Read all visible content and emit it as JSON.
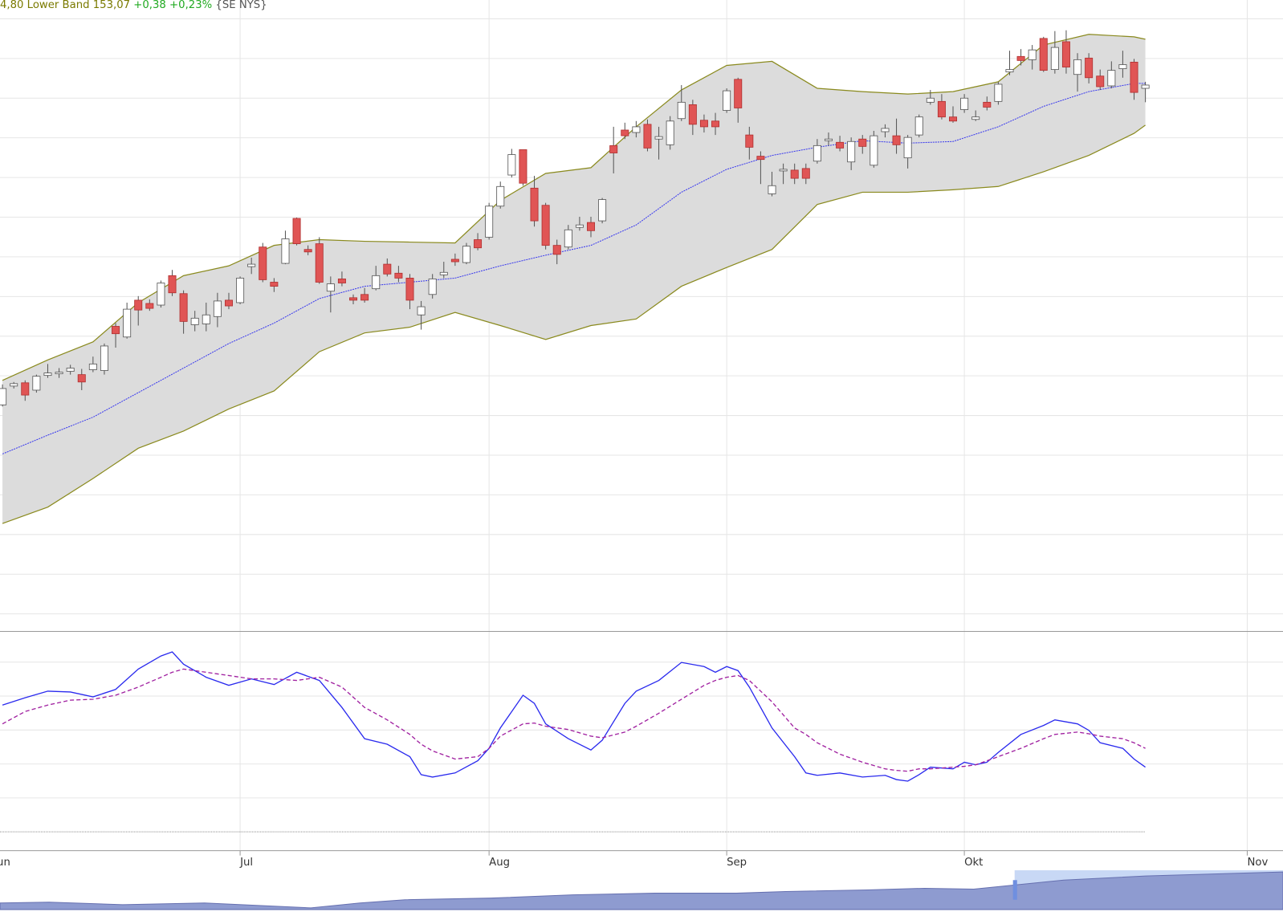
{
  "header": {
    "band": "4,80 Lower Band 153,07",
    "change": "+0,38",
    "change_pct": "+0,23%",
    "exchange": "{SE NYS}"
  },
  "chart_data": [
    {
      "type": "candlestick",
      "x": [
        0,
        1,
        2,
        3,
        4,
        5,
        6,
        7,
        8,
        9,
        10,
        11,
        12,
        13,
        14,
        15,
        16,
        17,
        18,
        19,
        20,
        21,
        22,
        23,
        24,
        25,
        26,
        27,
        28,
        29,
        30,
        31,
        32,
        33,
        34,
        35,
        36,
        37,
        38,
        39,
        40,
        41,
        42,
        43,
        44,
        45,
        46,
        47,
        48,
        49,
        50,
        51,
        52,
        53,
        54,
        55,
        56,
        57,
        58,
        59,
        60,
        61,
        62,
        63,
        64,
        65,
        66,
        67,
        68,
        69,
        70,
        71,
        72,
        73,
        74,
        75,
        76,
        77,
        78,
        79,
        80,
        81,
        82,
        83,
        84,
        85,
        86,
        87,
        88,
        89,
        90,
        91,
        92,
        93,
        94,
        95,
        96,
        97,
        98,
        99,
        100,
        101
      ],
      "open": [
        139.4,
        140.32,
        140.48,
        140.12,
        140.84,
        140.92,
        141.04,
        140.88,
        141.12,
        141.08,
        143.24,
        142.72,
        144.52,
        144.36,
        144.28,
        145.72,
        144.84,
        143.32,
        143.36,
        143.72,
        144.52,
        144.4,
        146.16,
        147.12,
        145.4,
        146.32,
        148.52,
        147.0,
        147.28,
        144.96,
        145.56,
        144.64,
        144.8,
        145.08,
        146.28,
        145.84,
        145.6,
        143.8,
        144.8,
        145.76,
        146.52,
        146.36,
        147.48,
        147.6,
        149.12,
        150.64,
        151.88,
        150.0,
        149.16,
        147.2,
        147.12,
        148.08,
        148.32,
        148.4,
        152.08,
        152.84,
        152.72,
        153.12,
        152.4,
        152.12,
        153.4,
        154.08,
        153.32,
        153.28,
        153.8,
        155.32,
        152.6,
        151.56,
        149.72,
        150.84,
        150.88,
        150.96,
        151.32,
        152.32,
        152.24,
        151.28,
        152.4,
        151.12,
        152.76,
        152.56,
        151.48,
        152.6,
        154.2,
        154.24,
        153.48,
        153.84,
        153.36,
        154.2,
        154.24,
        155.68,
        156.44,
        156.28,
        157.32,
        155.8,
        157.16,
        155.56,
        156.36,
        155.48,
        155.0,
        155.84,
        156.16,
        154.88
      ],
      "high": [
        140.4,
        140.52,
        140.6,
        140.88,
        141.4,
        141.2,
        141.36,
        141.16,
        141.76,
        142.4,
        143.4,
        144.4,
        144.72,
        144.56,
        145.48,
        146.0,
        145.0,
        144.0,
        144.4,
        144.88,
        144.88,
        145.68,
        146.6,
        147.32,
        145.6,
        147.92,
        148.56,
        147.2,
        147.6,
        145.68,
        145.92,
        144.8,
        145.12,
        146.2,
        146.56,
        146.2,
        145.8,
        144.48,
        145.8,
        146.4,
        146.8,
        147.32,
        147.8,
        149.28,
        150.32,
        151.92,
        151.88,
        150.6,
        149.28,
        147.48,
        148.2,
        148.6,
        148.6,
        149.52,
        153.0,
        153.2,
        153.28,
        153.36,
        153.0,
        153.52,
        155.04,
        154.32,
        153.6,
        153.68,
        154.88,
        155.4,
        153.0,
        151.8,
        150.8,
        151.2,
        151.2,
        151.2,
        152.4,
        152.72,
        152.56,
        152.48,
        152.6,
        152.8,
        153.12,
        153.4,
        152.6,
        153.6,
        154.8,
        154.6,
        154.0,
        154.6,
        153.8,
        154.48,
        155.2,
        156.72,
        156.8,
        157.0,
        157.4,
        157.68,
        157.72,
        156.6,
        156.6,
        155.8,
        156.2,
        156.72,
        156.32,
        155.2
      ],
      "low": [
        139.32,
        140.2,
        139.6,
        140.0,
        140.72,
        140.72,
        140.88,
        140.12,
        141.0,
        140.88,
        142.2,
        142.64,
        143.28,
        144.0,
        144.16,
        144.72,
        142.88,
        143.0,
        143.0,
        143.2,
        144.08,
        144.32,
        145.8,
        145.4,
        144.92,
        146.28,
        147.2,
        146.72,
        145.32,
        143.92,
        145.2,
        144.32,
        144.4,
        145.0,
        145.68,
        145.4,
        144.08,
        143.08,
        144.6,
        145.6,
        146.2,
        146.28,
        146.96,
        147.48,
        149.0,
        150.52,
        150.12,
        148.12,
        147.0,
        146.28,
        147.0,
        147.92,
        147.6,
        148.28,
        150.72,
        152.4,
        152.48,
        151.8,
        151.4,
        151.88,
        153.28,
        152.6,
        152.72,
        152.6,
        153.68,
        153.2,
        151.4,
        150.2,
        149.6,
        150.2,
        150.2,
        150.2,
        151.2,
        152.08,
        151.8,
        150.88,
        151.68,
        151.0,
        152.48,
        151.68,
        150.96,
        152.48,
        154.08,
        153.36,
        153.2,
        153.68,
        153.28,
        153.8,
        154.08,
        155.52,
        156.0,
        155.8,
        155.68,
        155.6,
        155.6,
        154.72,
        155.12,
        154.8,
        154.88,
        155.4,
        154.32,
        154.2
      ],
      "close": [
        140.2,
        140.44,
        139.88,
        140.8,
        140.96,
        141.0,
        141.2,
        140.52,
        141.4,
        142.28,
        142.88,
        144.08,
        144.04,
        144.12,
        145.36,
        144.88,
        143.48,
        143.64,
        143.8,
        144.48,
        144.24,
        145.6,
        146.28,
        145.52,
        145.2,
        147.52,
        147.28,
        146.88,
        145.4,
        145.32,
        145.36,
        144.52,
        144.52,
        145.72,
        145.8,
        145.6,
        144.52,
        144.2,
        145.56,
        145.88,
        146.4,
        147.16,
        147.08,
        149.12,
        150.08,
        151.64,
        150.24,
        148.4,
        147.2,
        146.76,
        147.96,
        148.2,
        147.92,
        149.44,
        151.72,
        152.56,
        153.0,
        151.96,
        152.52,
        153.28,
        154.2,
        153.12,
        153.0,
        153.0,
        154.76,
        153.92,
        152.0,
        151.4,
        150.12,
        150.92,
        150.48,
        150.48,
        152.08,
        152.4,
        151.96,
        152.28,
        152.04,
        152.56,
        152.92,
        152.12,
        152.48,
        153.48,
        154.4,
        153.48,
        153.28,
        154.4,
        153.48,
        153.96,
        155.08,
        155.8,
        156.24,
        156.76,
        155.76,
        156.88,
        155.92,
        156.28,
        155.4,
        154.96,
        155.76,
        156.04,
        154.68,
        155.04
      ],
      "up_color": "#ffffff",
      "down_color": "#e05555",
      "wick_color": "#555555",
      "bands": {
        "x": [
          0,
          4,
          8,
          12,
          16,
          20,
          24,
          28,
          32,
          36,
          40,
          44,
          48,
          52,
          56,
          60,
          64,
          68,
          72,
          76,
          80,
          84,
          88,
          92,
          96,
          100,
          101
        ],
        "upper": [
          140.6,
          141.6,
          142.48,
          144.4,
          145.72,
          146.2,
          147.2,
          147.48,
          147.4,
          147.36,
          147.32,
          149.4,
          150.72,
          151.0,
          153.0,
          154.8,
          156.0,
          156.2,
          154.88,
          154.72,
          154.6,
          154.72,
          155.2,
          157.0,
          157.52,
          157.4,
          157.28
        ],
        "middle": [
          137.0,
          137.92,
          138.8,
          140.0,
          141.2,
          142.4,
          143.4,
          144.6,
          145.2,
          145.4,
          145.6,
          146.2,
          146.72,
          147.2,
          148.2,
          149.8,
          150.92,
          151.6,
          152.0,
          152.32,
          152.2,
          152.28,
          153.0,
          154.0,
          154.72,
          155.12,
          155.12
        ],
        "lower": [
          133.6,
          134.4,
          135.8,
          137.28,
          138.12,
          139.2,
          140.08,
          142.0,
          142.92,
          143.2,
          143.92,
          143.28,
          142.6,
          143.28,
          143.6,
          145.2,
          146.12,
          147.0,
          149.2,
          149.8,
          149.8,
          149.92,
          150.08,
          150.8,
          151.6,
          152.68,
          153.08
        ],
        "line_color": "#8a8a1e",
        "fill_color": "#dcdcdc",
        "middle_color": "#3a3aee"
      },
      "xlim": [
        -0.22,
        113.16
      ],
      "xticks": [
        {
          "value": -0.5,
          "label": "un"
        },
        {
          "value": 21,
          "label": "Jul"
        },
        {
          "value": 43,
          "label": "Aug"
        },
        {
          "value": 64,
          "label": "Sep"
        },
        {
          "value": 85,
          "label": "Okt"
        },
        {
          "value": 110,
          "label": "Nov"
        }
      ],
      "ylim": [
        128.4,
        159.2
      ],
      "yticks": [
        129.18,
        131.12,
        133.06,
        135.0,
        136.94,
        138.88,
        140.82,
        142.76,
        144.7,
        146.64,
        148.58,
        150.52,
        152.46,
        154.4,
        156.34,
        158.28
      ],
      "grid": true
    },
    {
      "type": "line",
      "x": [
        0,
        2,
        4,
        6,
        8,
        10,
        12,
        14,
        15,
        16,
        18,
        20,
        22,
        24,
        26,
        28,
        30,
        32,
        34,
        36,
        37,
        38,
        40,
        42,
        43,
        44,
        46,
        47,
        48,
        50,
        52,
        53,
        55,
        56,
        58,
        60,
        62,
        63,
        64,
        65,
        66,
        68,
        70,
        71,
        72,
        74,
        76,
        78,
        79,
        80,
        81,
        82,
        84,
        85,
        86,
        87,
        88,
        90,
        92,
        93,
        95,
        96,
        97,
        99,
        100,
        101
      ],
      "series": [
        {
          "color": "#2a2aee",
          "dashed": false,
          "values": [
            74.7,
            79.0,
            82.9,
            82.4,
            79.5,
            83.9,
            95.9,
            103.6,
            106.0,
            98.8,
            91.1,
            86.3,
            90.1,
            86.8,
            94.0,
            89.2,
            73.3,
            54.9,
            51.6,
            44.3,
            33.7,
            32.3,
            34.7,
            41.9,
            49.2,
            61.2,
            80.5,
            75.7,
            63.6,
            54.9,
            48.2,
            54.0,
            75.7,
            82.9,
            89.2,
            99.8,
            97.4,
            94.0,
            97.4,
            95.0,
            85.3,
            61.2,
            44.3,
            34.7,
            33.3,
            34.7,
            32.3,
            33.3,
            30.8,
            29.9,
            33.7,
            38.1,
            37.1,
            41.0,
            39.5,
            41.0,
            46.8,
            57.4,
            62.7,
            66.0,
            63.6,
            59.8,
            52.5,
            49.2,
            42.9,
            38.1
          ]
        },
        {
          "color": "#a020a0",
          "dashed": true,
          "values": [
            63.6,
            70.9,
            74.7,
            77.6,
            78.1,
            80.5,
            85.3,
            91.1,
            94.0,
            95.9,
            94.0,
            92.1,
            90.1,
            90.1,
            89.2,
            91.1,
            85.3,
            73.3,
            66.0,
            57.4,
            51.6,
            47.7,
            42.9,
            44.3,
            49.2,
            56.4,
            63.6,
            64.1,
            62.2,
            60.3,
            56.4,
            55.4,
            58.8,
            62.2,
            69.9,
            78.1,
            86.3,
            89.2,
            91.1,
            92.1,
            89.2,
            76.6,
            61.2,
            57.4,
            52.5,
            45.8,
            41.0,
            37.1,
            36.2,
            35.7,
            37.1,
            37.1,
            38.1,
            38.6,
            39.5,
            41.9,
            44.3,
            49.2,
            54.9,
            57.4,
            58.8,
            57.8,
            56.4,
            54.9,
            52.5,
            49.2
          ]
        }
      ],
      "xlim": [
        -0.22,
        113.16
      ],
      "ylim": [
        -11.08,
        118.07
      ],
      "yticks": [
        0,
        20,
        40,
        60,
        80,
        100
      ],
      "grid": true
    }
  ]
}
